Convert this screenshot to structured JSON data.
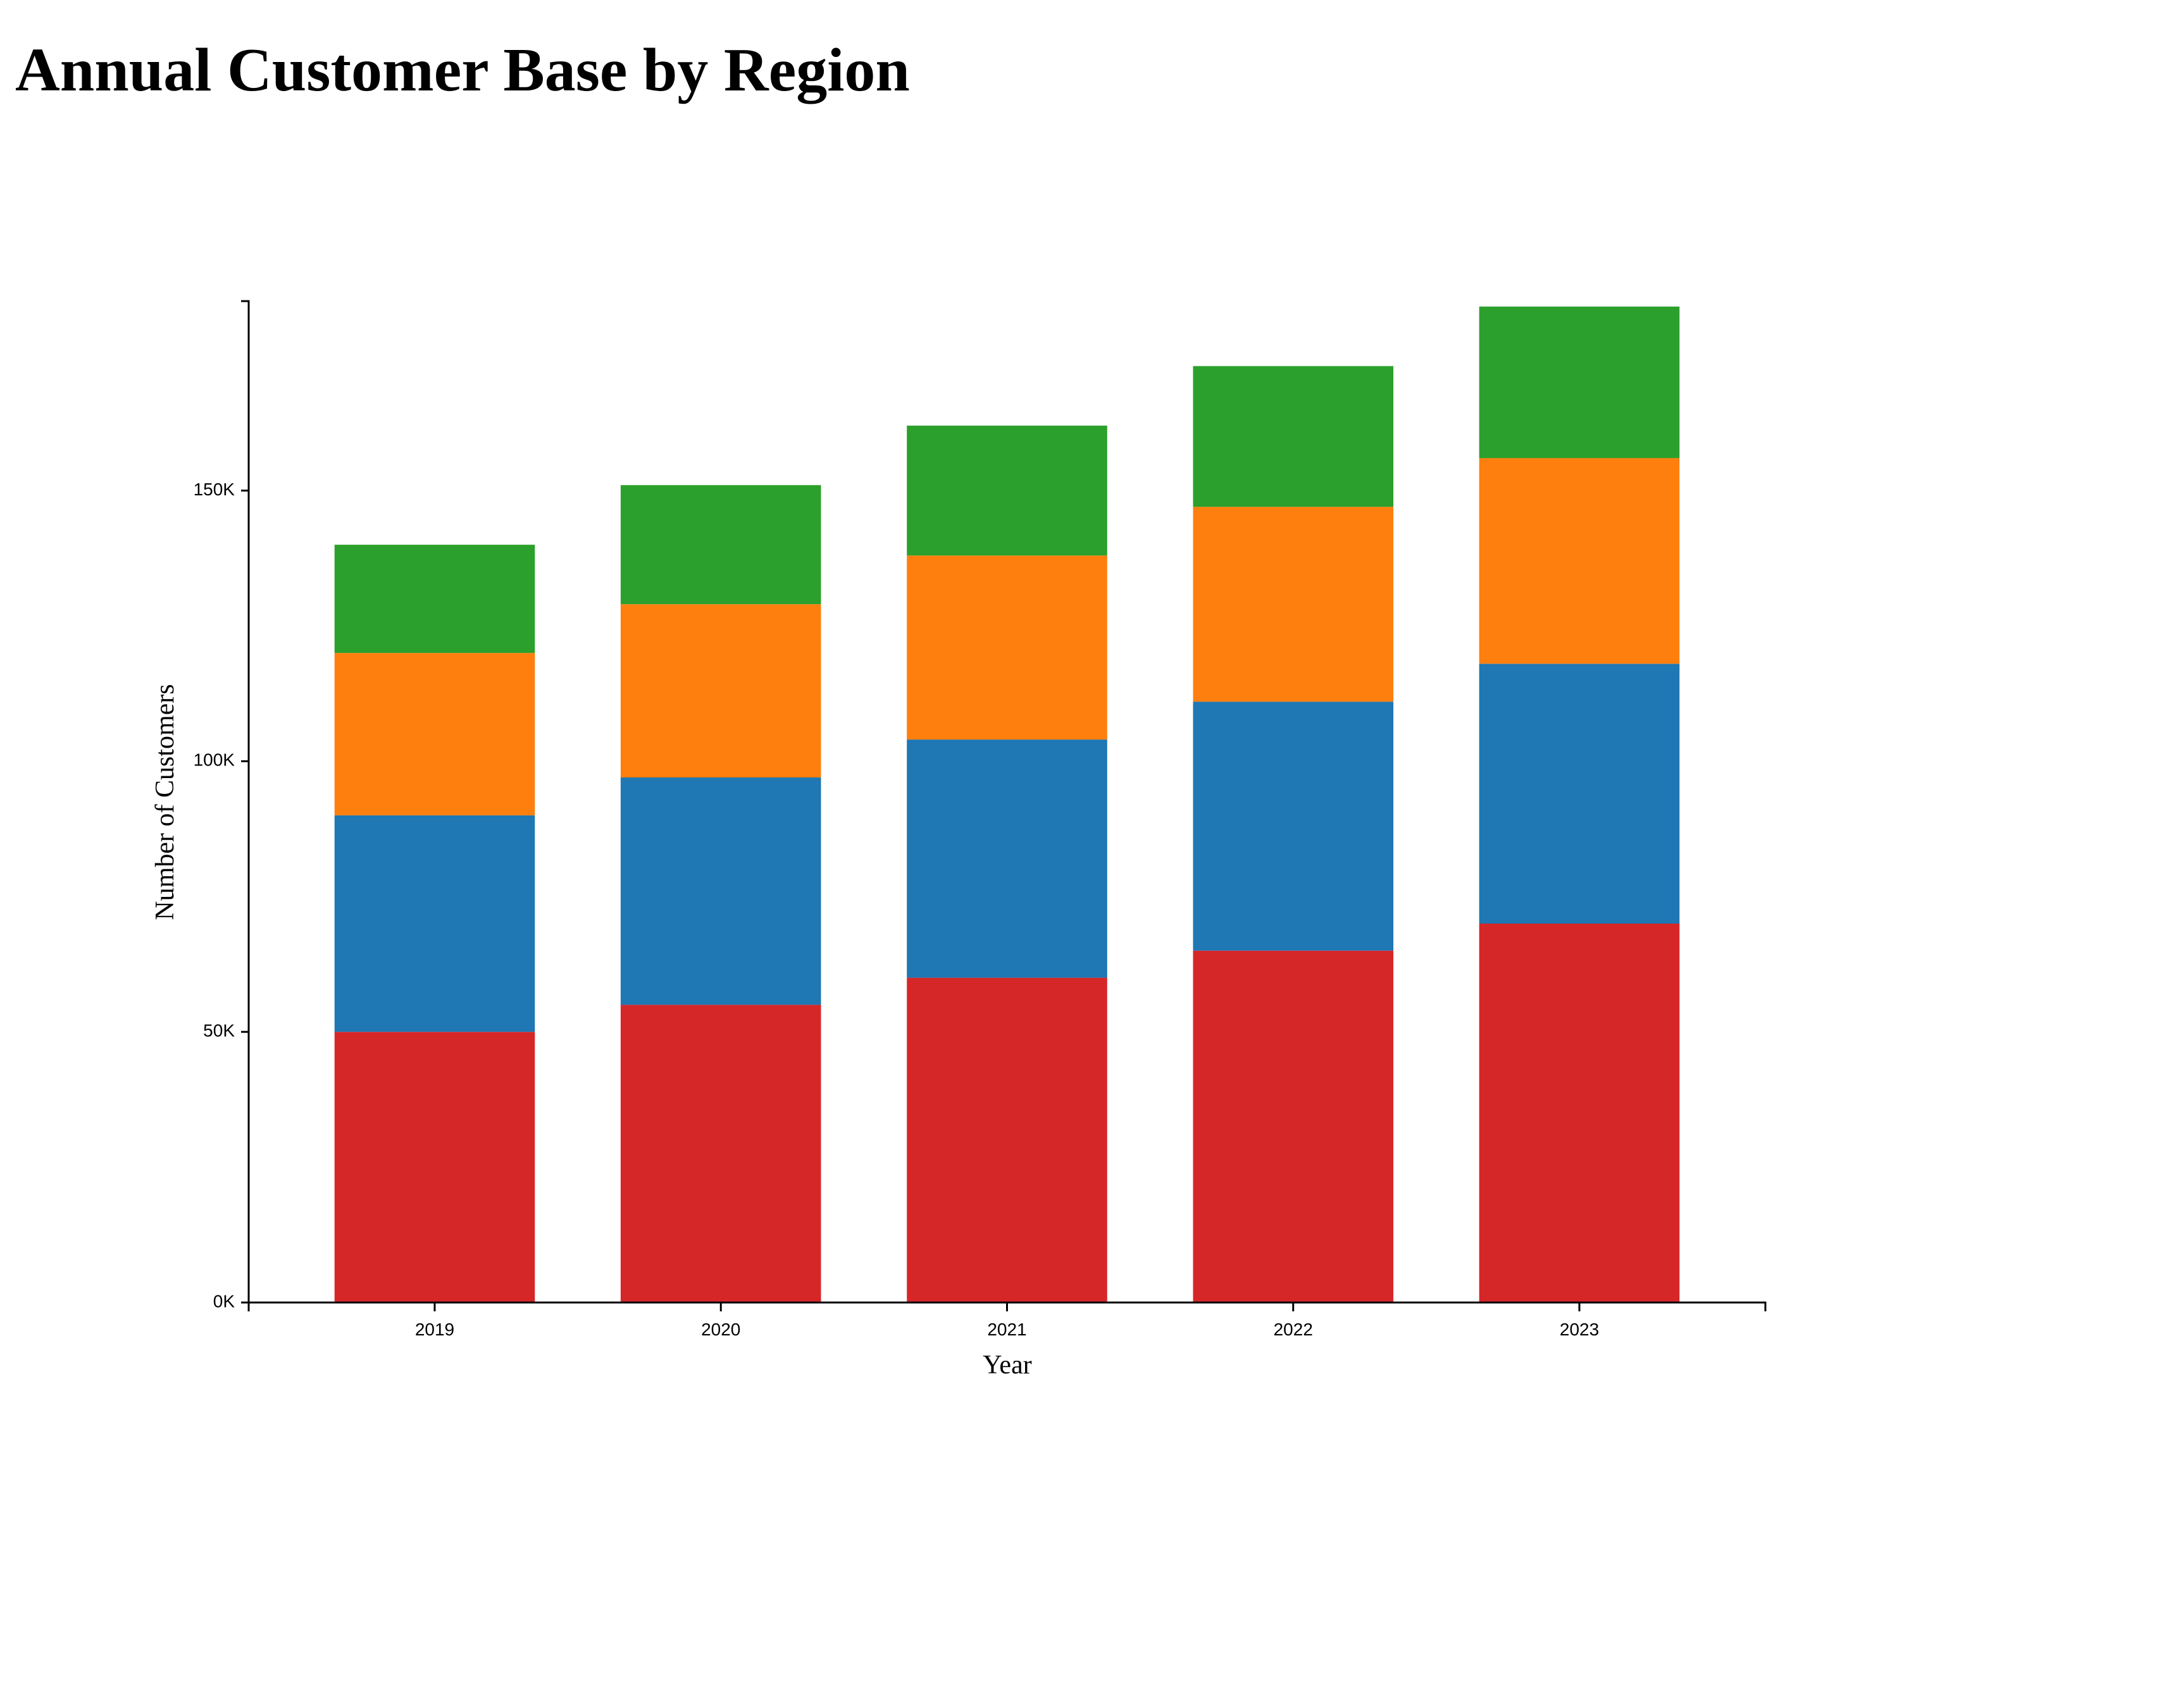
{
  "title": "Annual Customer Base by Region",
  "chart_data": {
    "type": "bar",
    "stacked": true,
    "title": "Annual Customer Base by Region",
    "xlabel": "Year",
    "ylabel": "Number of Customers",
    "categories": [
      "2019",
      "2020",
      "2021",
      "2022",
      "2023"
    ],
    "yticks": [
      0,
      50000,
      100000,
      150000
    ],
    "ytick_labels": [
      "0K",
      "50K",
      "100K",
      "150K"
    ],
    "ylim": [
      0,
      185000
    ],
    "grid": false,
    "series": [
      {
        "color": "#d62728",
        "values": [
          50000,
          55000,
          60000,
          65000,
          70000
        ]
      },
      {
        "color": "#1f77b4",
        "values": [
          40000,
          42000,
          44000,
          46000,
          48000
        ]
      },
      {
        "color": "#ff7f0e",
        "values": [
          30000,
          32000,
          34000,
          36000,
          38000
        ]
      },
      {
        "color": "#2ca02c",
        "values": [
          20000,
          22000,
          24000,
          26000,
          28000
        ]
      }
    ]
  }
}
